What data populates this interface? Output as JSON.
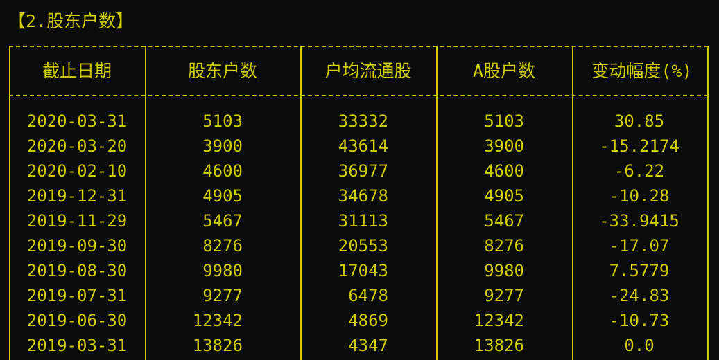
{
  "title": "【2.股东户数】",
  "table": {
    "headers": [
      "截止日期",
      "股东户数",
      "户均流通股",
      "A股户数",
      "变动幅度(%)"
    ],
    "rows": [
      [
        "2020-03-31",
        "5103",
        "33332",
        "5103",
        "30.85"
      ],
      [
        "2020-03-20",
        "3900",
        "43614",
        "3900",
        "-15.2174"
      ],
      [
        "2020-02-10",
        "4600",
        "36977",
        "4600",
        "-6.22"
      ],
      [
        "2019-12-31",
        "4905",
        "34678",
        "4905",
        "-10.28"
      ],
      [
        "2019-11-29",
        "5467",
        "31113",
        "5467",
        "-33.9415"
      ],
      [
        "2019-09-30",
        "8276",
        "20553",
        "8276",
        "-17.07"
      ],
      [
        "2019-08-30",
        "9980",
        "17043",
        "9980",
        "7.5779"
      ],
      [
        "2019-07-31",
        "9277",
        "6478",
        "9277",
        "-24.83"
      ],
      [
        "2019-06-30",
        "12342",
        "4869",
        "12342",
        "-10.73"
      ],
      [
        "2019-03-31",
        "13826",
        "4347",
        "13826",
        "0.0"
      ]
    ]
  },
  "colors": {
    "background": "#0c0c0c",
    "text": "#cccc00"
  }
}
